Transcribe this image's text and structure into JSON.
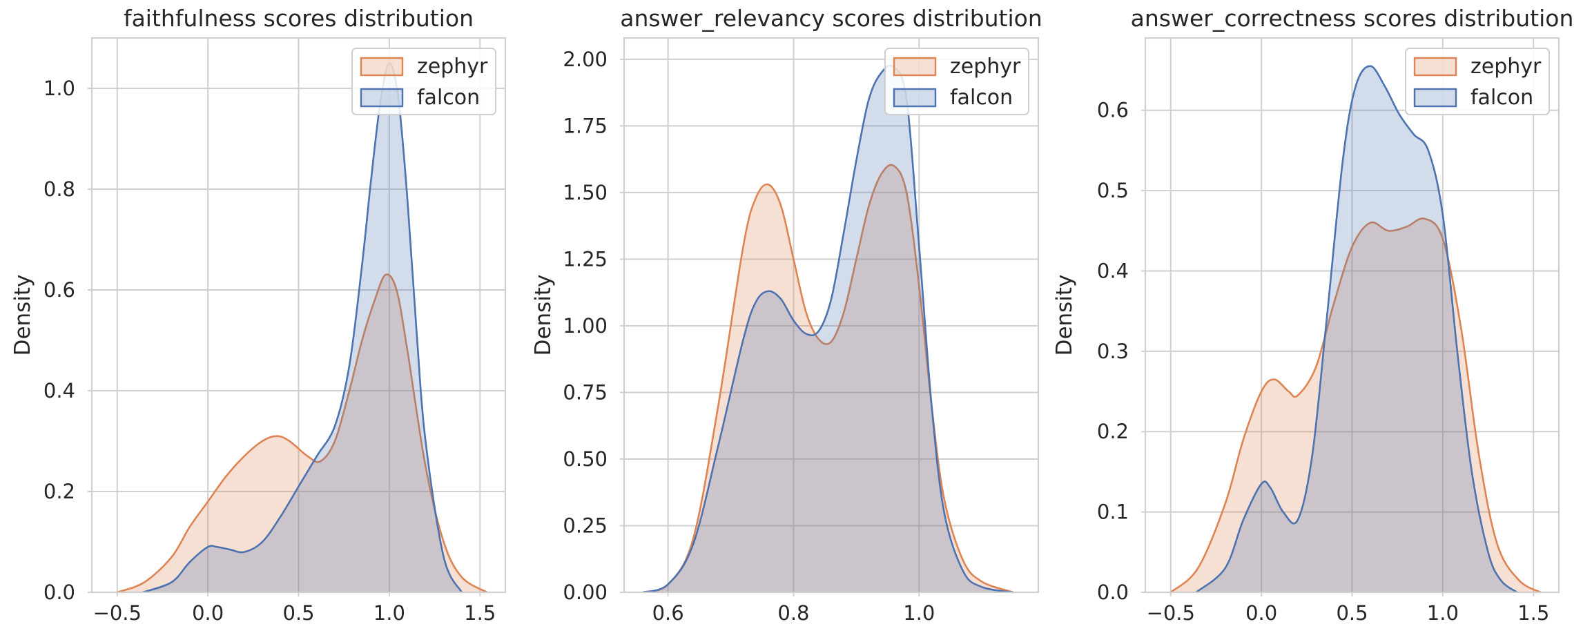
{
  "colors": {
    "zephyr": "#dd8452",
    "falcon": "#4c72b0",
    "grid": "#cfcfcf",
    "text": "#262626"
  },
  "chart_data": [
    {
      "type": "area",
      "title": "faithfulness scores distribution",
      "xlabel": "",
      "ylabel": "Density",
      "xlim": [
        -0.64,
        1.64
      ],
      "ylim": [
        0,
        1.1
      ],
      "xticks": [
        -0.5,
        0.0,
        0.5,
        1.0,
        1.5
      ],
      "xtick_labels": [
        "−0.5",
        "0.0",
        "0.5",
        "1.0",
        "1.5"
      ],
      "yticks": [
        0.0,
        0.2,
        0.4,
        0.6,
        0.8,
        1.0
      ],
      "ytick_labels": [
        "0.0",
        "0.2",
        "0.4",
        "0.6",
        "0.8",
        "1.0"
      ],
      "grid": true,
      "legend_position": "top-right",
      "series": [
        {
          "name": "zephyr",
          "color": "#dd8452",
          "x": [
            -0.5,
            -0.35,
            -0.2,
            -0.1,
            0.0,
            0.1,
            0.2,
            0.3,
            0.38,
            0.45,
            0.55,
            0.62,
            0.7,
            0.78,
            0.85,
            0.92,
            0.98,
            1.04,
            1.1,
            1.2,
            1.3,
            1.4,
            1.54
          ],
          "y": [
            0.0,
            0.02,
            0.07,
            0.13,
            0.18,
            0.23,
            0.27,
            0.3,
            0.31,
            0.3,
            0.27,
            0.26,
            0.3,
            0.4,
            0.5,
            0.58,
            0.63,
            0.6,
            0.48,
            0.25,
            0.1,
            0.03,
            0.0
          ]
        },
        {
          "name": "falcon",
          "color": "#4c72b0",
          "x": [
            -0.36,
            -0.2,
            -0.1,
            0.0,
            0.05,
            0.12,
            0.2,
            0.3,
            0.4,
            0.5,
            0.6,
            0.7,
            0.78,
            0.85,
            0.9,
            0.95,
            1.0,
            1.05,
            1.1,
            1.15,
            1.2,
            1.3,
            1.4
          ],
          "y": [
            0.0,
            0.02,
            0.06,
            0.09,
            0.09,
            0.085,
            0.08,
            0.1,
            0.15,
            0.21,
            0.27,
            0.33,
            0.45,
            0.65,
            0.82,
            0.97,
            1.05,
            0.98,
            0.78,
            0.52,
            0.3,
            0.07,
            0.0
          ]
        }
      ]
    },
    {
      "type": "area",
      "title": "answer_relevancy scores distribution",
      "xlabel": "",
      "ylabel": "Density",
      "xlim": [
        0.53,
        1.19
      ],
      "ylim": [
        0,
        2.08
      ],
      "xticks": [
        0.6,
        0.8,
        1.0
      ],
      "xtick_labels": [
        "0.6",
        "0.8",
        "1.0"
      ],
      "yticks": [
        0.0,
        0.25,
        0.5,
        0.75,
        1.0,
        1.25,
        1.5,
        1.75,
        2.0
      ],
      "ytick_labels": [
        "0.00",
        "0.25",
        "0.50",
        "0.75",
        "1.00",
        "1.25",
        "1.50",
        "1.75",
        "2.00"
      ],
      "grid": true,
      "legend_position": "top-right",
      "series": [
        {
          "name": "zephyr",
          "color": "#dd8452",
          "x": [
            0.56,
            0.6,
            0.64,
            0.68,
            0.72,
            0.74,
            0.76,
            0.78,
            0.8,
            0.82,
            0.84,
            0.86,
            0.88,
            0.9,
            0.92,
            0.94,
            0.96,
            0.98,
            1.0,
            1.02,
            1.04,
            1.07,
            1.1,
            1.15
          ],
          "y": [
            0.0,
            0.03,
            0.2,
            0.7,
            1.3,
            1.48,
            1.53,
            1.45,
            1.25,
            1.05,
            0.95,
            0.94,
            1.05,
            1.25,
            1.45,
            1.57,
            1.6,
            1.5,
            1.15,
            0.7,
            0.35,
            0.12,
            0.04,
            0.0
          ]
        },
        {
          "name": "falcon",
          "color": "#4c72b0",
          "x": [
            0.56,
            0.6,
            0.64,
            0.68,
            0.72,
            0.74,
            0.76,
            0.78,
            0.8,
            0.82,
            0.84,
            0.86,
            0.88,
            0.9,
            0.92,
            0.94,
            0.96,
            0.98,
            1.0,
            1.02,
            1.04,
            1.07,
            1.1,
            1.15
          ],
          "y": [
            0.0,
            0.03,
            0.18,
            0.55,
            0.95,
            1.09,
            1.13,
            1.1,
            1.02,
            0.97,
            0.98,
            1.1,
            1.35,
            1.62,
            1.85,
            1.95,
            1.97,
            1.85,
            1.3,
            0.7,
            0.3,
            0.08,
            0.02,
            0.0
          ]
        }
      ]
    },
    {
      "type": "area",
      "title": "answer_correctness scores distribution",
      "xlabel": "",
      "ylabel": "Density",
      "xlim": [
        -0.64,
        1.64
      ],
      "ylim": [
        0,
        0.69
      ],
      "xticks": [
        -0.5,
        0.0,
        0.5,
        1.0,
        1.5
      ],
      "xtick_labels": [
        "−0.5",
        "0.0",
        "0.5",
        "1.0",
        "1.5"
      ],
      "yticks": [
        0.0,
        0.1,
        0.2,
        0.3,
        0.4,
        0.5,
        0.6
      ],
      "ytick_labels": [
        "0.0",
        "0.1",
        "0.2",
        "0.3",
        "0.4",
        "0.5",
        "0.6"
      ],
      "grid": true,
      "legend_position": "top-right",
      "series": [
        {
          "name": "zephyr",
          "color": "#dd8452",
          "x": [
            -0.5,
            -0.35,
            -0.2,
            -0.1,
            0.0,
            0.07,
            0.15,
            0.2,
            0.3,
            0.4,
            0.5,
            0.6,
            0.7,
            0.8,
            0.9,
            1.0,
            1.1,
            1.2,
            1.3,
            1.42,
            1.54
          ],
          "y": [
            0.0,
            0.03,
            0.11,
            0.19,
            0.25,
            0.265,
            0.25,
            0.245,
            0.28,
            0.36,
            0.43,
            0.46,
            0.45,
            0.455,
            0.465,
            0.44,
            0.33,
            0.17,
            0.06,
            0.015,
            0.0
          ]
        },
        {
          "name": "falcon",
          "color": "#4c72b0",
          "x": [
            -0.36,
            -0.2,
            -0.1,
            0.0,
            0.05,
            0.12,
            0.2,
            0.28,
            0.36,
            0.45,
            0.52,
            0.6,
            0.68,
            0.76,
            0.84,
            0.92,
            1.0,
            1.08,
            1.16,
            1.25,
            1.32,
            1.41
          ],
          "y": [
            0.0,
            0.03,
            0.09,
            0.135,
            0.13,
            0.1,
            0.09,
            0.17,
            0.34,
            0.54,
            0.63,
            0.655,
            0.63,
            0.595,
            0.57,
            0.55,
            0.47,
            0.3,
            0.15,
            0.05,
            0.015,
            0.0
          ]
        }
      ]
    }
  ]
}
